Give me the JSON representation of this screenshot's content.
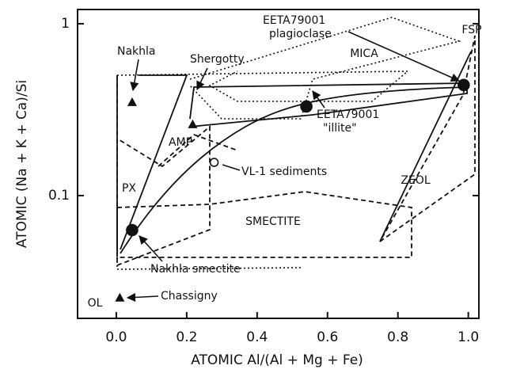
{
  "chart_data": {
    "type": "scatter",
    "x_label": "ATOMIC Al/(Al + Mg + Fe)",
    "y_label": "ATOMIC (Na + K + Ca)/Si",
    "y_log": true,
    "xlim": [
      -0.11,
      1.03
    ],
    "ylim": [
      0.0193,
      1.21
    ],
    "xticks": [
      {
        "value": 0,
        "label": "0.0"
      },
      0.2,
      0.4,
      0.6,
      0.8,
      {
        "value": 1,
        "label": "1.0"
      }
    ],
    "yticks": [
      0.1,
      1
    ],
    "points": [
      {
        "label": "Nakhla",
        "marker": "triangle",
        "x": 0.045,
        "y": 0.35
      },
      {
        "label": "Shergotty",
        "marker": "triangle",
        "x": 0.217,
        "y": 0.26
      },
      {
        "label": "Chassigny",
        "marker": "triangle",
        "x": 0.01,
        "y": 0.0255
      },
      {
        "label": "Nakhla smectite",
        "marker": "filled_circle",
        "x": 0.045,
        "y": 0.063
      },
      {
        "label": "EETA79001",
        "sublabel": "\"illite\"",
        "marker": "filled_circle",
        "x": 0.54,
        "y": 0.33
      },
      {
        "label": "EETA79001",
        "sublabel": "plagioclase",
        "marker": "filled_circle",
        "x": 0.987,
        "y": 0.44
      },
      {
        "label": "VL-1 sediments",
        "marker": "open_circle",
        "x": 0.278,
        "y": 0.156
      }
    ],
    "region_labels": [
      "PX",
      "AMP",
      "MICA",
      "ZEOL",
      "SMECTITE",
      "FSP",
      "OL"
    ]
  }
}
